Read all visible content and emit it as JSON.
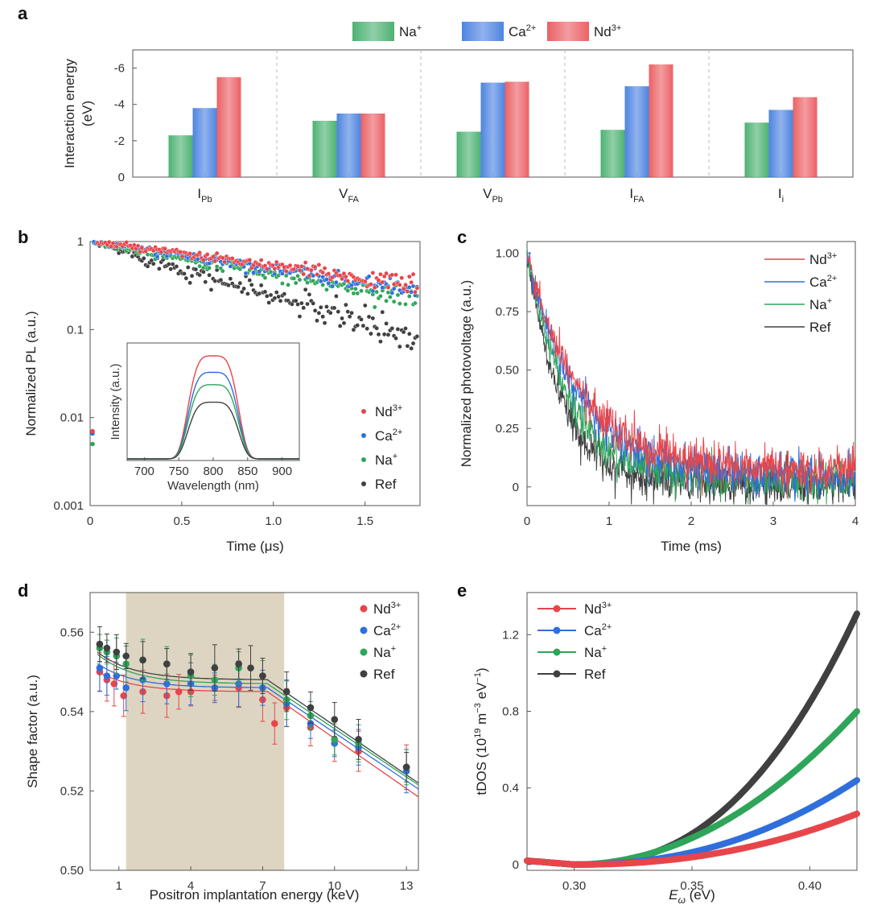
{
  "panel_labels": {
    "a": "a",
    "b": "b",
    "c": "c",
    "d": "d",
    "e": "e"
  },
  "series_colors": {
    "Nd3+": "#e8454a",
    "Ca2+": "#2f6fdc",
    "Na+": "#2ea55a",
    "Ref": "#404040"
  },
  "chart_data": [
    {
      "id": "a",
      "type": "bar",
      "ylabel": "Interaction energy",
      "ylabel2": "(eV)",
      "ylim": [
        0,
        -7
      ],
      "yticks": [
        {
          "v": 0,
          "t": "0"
        },
        {
          "v": -2,
          "t": "-2"
        },
        {
          "v": -4,
          "t": "-4"
        },
        {
          "v": -6,
          "t": "-6"
        }
      ],
      "categories": [
        {
          "main": "I",
          "sub": "Pb"
        },
        {
          "main": "V",
          "sub": "FA"
        },
        {
          "main": "V",
          "sub": "Pb"
        },
        {
          "main": "I",
          "sub": "FA"
        },
        {
          "main": "I",
          "sub": "i"
        }
      ],
      "series": [
        {
          "name": "Na",
          "sup": "+",
          "color": "#2ea55a",
          "values": [
            -2.3,
            -3.1,
            -2.5,
            -2.6,
            -3.0
          ]
        },
        {
          "name": "Ca",
          "sup": "2+",
          "color": "#2f6fdc",
          "values": [
            -3.8,
            -3.5,
            -5.2,
            -5.0,
            -3.7
          ]
        },
        {
          "name": "Nd",
          "sup": "3+",
          "color": "#e8454a",
          "values": [
            -5.5,
            -3.5,
            -5.25,
            -6.2,
            -4.4
          ]
        }
      ],
      "legend_position": "top"
    },
    {
      "id": "b",
      "type": "scatter",
      "yscale": "log",
      "xlabel": "Time (μs)",
      "ylabel": "Normalized PL (a.u.)",
      "xlim": [
        0,
        1.8
      ],
      "ylim": [
        0.001,
        1
      ],
      "xticks": [
        {
          "v": 0,
          "t": "0"
        },
        {
          "v": 0.5,
          "t": "0.5"
        },
        {
          "v": 1.0,
          "t": "1.0"
        },
        {
          "v": 1.5,
          "t": "1.5"
        }
      ],
      "yticks": [
        {
          "v": 0.001,
          "t": "0.001"
        },
        {
          "v": 0.01,
          "t": "0.01"
        },
        {
          "v": 0.1,
          "t": "0.1"
        },
        {
          "v": 1,
          "t": "1"
        }
      ],
      "series": [
        {
          "name": "Nd",
          "sup": "3+",
          "color": "#e8454a",
          "tau": 1.55,
          "noise": 0.05,
          "pre": 0.007
        },
        {
          "name": "Ca",
          "sup": "2+",
          "color": "#2f6fdc",
          "tau": 1.4,
          "noise": 0.05,
          "pre": 0.0066
        },
        {
          "name": "Na",
          "sup": "+",
          "color": "#2ea55a",
          "tau": 1.18,
          "noise": 0.06,
          "pre": 0.005
        },
        {
          "name": "Ref",
          "sup": "",
          "color": "#404040",
          "tau": 0.7,
          "noise": 0.1,
          "pre": 0
        }
      ],
      "legend_position": "bottom-right",
      "inset": {
        "xlabel": "Wavelength (nm)",
        "ylabel": "Intensity (a.u.)",
        "xlim": [
          675,
          925
        ],
        "xticks": [
          {
            "v": 700,
            "t": "700"
          },
          {
            "v": 750,
            "t": "750"
          },
          {
            "v": 800,
            "t": "800"
          },
          {
            "v": 850,
            "t": "850"
          },
          {
            "v": 900,
            "t": "900"
          }
        ],
        "center": 800,
        "width": 42,
        "peaks": [
          {
            "color": "#e8454a",
            "height": 1.0
          },
          {
            "color": "#2f6fdc",
            "height": 0.84
          },
          {
            "color": "#2ea55a",
            "height": 0.72
          },
          {
            "color": "#404040",
            "height": 0.55
          }
        ]
      }
    },
    {
      "id": "c",
      "type": "line",
      "xlabel": "Time (ms)",
      "ylabel": "Normalized photovoltage (a.u.)",
      "xlim": [
        0,
        4
      ],
      "ylim": [
        -0.08,
        1.05
      ],
      "xticks": [
        {
          "v": 0,
          "t": "0"
        },
        {
          "v": 1,
          "t": "1"
        },
        {
          "v": 2,
          "t": "2"
        },
        {
          "v": 3,
          "t": "3"
        },
        {
          "v": 4,
          "t": "4"
        }
      ],
      "yticks": [
        {
          "v": 0,
          "t": "0"
        },
        {
          "v": 0.25,
          "t": "0.25"
        },
        {
          "v": 0.5,
          "t": "0.50"
        },
        {
          "v": 0.75,
          "t": "0.75"
        },
        {
          "v": 1.0,
          "t": "1.00"
        }
      ],
      "series": [
        {
          "name": "Ref",
          "sup": "",
          "color": "#404040",
          "tau": 0.42,
          "base": 0.01
        },
        {
          "name": "Na",
          "sup": "+",
          "color": "#2ea55a",
          "tau": 0.5,
          "base": 0.03
        },
        {
          "name": "Ca",
          "sup": "2+",
          "color": "#2f6fdc",
          "tau": 0.62,
          "base": 0.05
        },
        {
          "name": "Nd",
          "sup": "3+",
          "color": "#e8454a",
          "tau": 0.65,
          "base": 0.07
        }
      ],
      "legend_order": [
        "Nd",
        "Ca",
        "Na",
        "Ref"
      ],
      "legend_position": "top-right"
    },
    {
      "id": "d",
      "type": "scatter",
      "xlabel": "Positron implantation energy (keV)",
      "ylabel": "Shape factor (a.u.)",
      "xlim": [
        -0.2,
        13.5
      ],
      "ylim": [
        0.5,
        0.57
      ],
      "xticks": [
        {
          "v": 1,
          "t": "1"
        },
        {
          "v": 4,
          "t": "4"
        },
        {
          "v": 7,
          "t": "7"
        },
        {
          "v": 10,
          "t": "10"
        },
        {
          "v": 13,
          "t": "13"
        }
      ],
      "yticks": [
        {
          "v": 0.5,
          "t": "0.50"
        },
        {
          "v": 0.52,
          "t": "0.52"
        },
        {
          "v": 0.54,
          "t": "0.54"
        },
        {
          "v": 0.56,
          "t": "0.56"
        }
      ],
      "shaded_region": [
        1.3,
        7.9
      ],
      "series": [
        {
          "name": "Nd",
          "sup": "3+",
          "color": "#e8454a",
          "points": [
            [
              0.2,
              0.55
            ],
            [
              0.5,
              0.548
            ],
            [
              0.8,
              0.547
            ],
            [
              1.2,
              0.544
            ],
            [
              2.0,
              0.545
            ],
            [
              3.0,
              0.544
            ],
            [
              3.5,
              0.545
            ],
            [
              4.0,
              0.545
            ],
            [
              5.0,
              0.546
            ],
            [
              6.0,
              0.546
            ],
            [
              7.0,
              0.543
            ],
            [
              7.5,
              0.537
            ],
            [
              8.0,
              0.541
            ],
            [
              9.0,
              0.536
            ],
            [
              10.0,
              0.533
            ],
            [
              11.0,
              0.53
            ],
            [
              13.0,
              0.526
            ]
          ],
          "fit": [
            0.5505,
            0.545,
            0.5185
          ]
        },
        {
          "name": "Ca",
          "sup": "2+",
          "color": "#2f6fdc",
          "points": [
            [
              0.2,
              0.551
            ],
            [
              0.5,
              0.549
            ],
            [
              0.9,
              0.549
            ],
            [
              1.3,
              0.546
            ],
            [
              2.0,
              0.548
            ],
            [
              3.0,
              0.547
            ],
            [
              4.0,
              0.547
            ],
            [
              5.0,
              0.546
            ],
            [
              6.0,
              0.547
            ],
            [
              7.0,
              0.546
            ],
            [
              8.0,
              0.542
            ],
            [
              9.0,
              0.537
            ],
            [
              10.0,
              0.532
            ],
            [
              11.0,
              0.531
            ],
            [
              13.0,
              0.525
            ]
          ],
          "fit": [
            0.5525,
            0.546,
            0.5205
          ]
        },
        {
          "name": "Na",
          "sup": "+",
          "color": "#2ea55a",
          "points": [
            [
              0.2,
              0.556
            ],
            [
              0.5,
              0.555
            ],
            [
              0.9,
              0.554
            ],
            [
              1.3,
              0.552
            ],
            [
              2.0,
              0.553
            ],
            [
              3.0,
              0.552
            ],
            [
              4.0,
              0.549
            ],
            [
              5.0,
              0.548
            ],
            [
              6.0,
              0.551
            ],
            [
              7.0,
              0.549
            ],
            [
              8.0,
              0.543
            ],
            [
              9.0,
              0.539
            ],
            [
              10.0,
              0.533
            ],
            [
              11.0,
              0.532
            ],
            [
              13.0,
              0.526
            ]
          ],
          "fit": [
            0.555,
            0.547,
            0.5215
          ]
        },
        {
          "name": "Ref",
          "sup": "",
          "color": "#404040",
          "points": [
            [
              0.2,
              0.557
            ],
            [
              0.5,
              0.556
            ],
            [
              0.9,
              0.555
            ],
            [
              1.3,
              0.554
            ],
            [
              2.0,
              0.553
            ],
            [
              3.0,
              0.552
            ],
            [
              4.0,
              0.55
            ],
            [
              5.0,
              0.551
            ],
            [
              6.0,
              0.552
            ],
            [
              6.5,
              0.551
            ],
            [
              7.0,
              0.549
            ],
            [
              8.0,
              0.545
            ],
            [
              9.0,
              0.541
            ],
            [
              10.0,
              0.538
            ],
            [
              11.0,
              0.533
            ],
            [
              13.0,
              0.526
            ]
          ],
          "fit": [
            0.5555,
            0.548,
            0.522
          ]
        }
      ],
      "legend_position": "top-right"
    },
    {
      "id": "e",
      "type": "line",
      "xlabel_main": "E",
      "xlabel_sub": "ω",
      "xlabel_unit": " (eV)",
      "ylabel_pre": "tDOS (10",
      "ylabel_sup1": "19",
      "ylabel_mid": " m",
      "ylabel_sup2": "−3",
      "ylabel_mid2": " eV",
      "ylabel_sup3": "−1",
      "ylabel_post": ")",
      "xlim": [
        0.28,
        0.42
      ],
      "ylim": [
        -0.03,
        1.42
      ],
      "xticks": [
        {
          "v": 0.3,
          "t": "0.30"
        },
        {
          "v": 0.35,
          "t": "0.35"
        },
        {
          "v": 0.4,
          "t": "0.40"
        }
      ],
      "yticks": [
        {
          "v": 0,
          "t": "0"
        },
        {
          "v": 0.4,
          "t": "0.4"
        },
        {
          "v": 0.8,
          "t": "0.8"
        },
        {
          "v": 1.2,
          "t": "1.2"
        }
      ],
      "series": [
        {
          "name": "Nd",
          "sup": "3+",
          "color": "#e8454a",
          "end": 0.265,
          "sharp": 2.2
        },
        {
          "name": "Ca",
          "sup": "2+",
          "color": "#2f6fdc",
          "end": 0.44,
          "sharp": 2.2
        },
        {
          "name": "Na",
          "sup": "+",
          "color": "#2ea55a",
          "end": 0.8,
          "sharp": 2.0
        },
        {
          "name": "Ref",
          "sup": "",
          "color": "#404040",
          "end": 1.31,
          "sharp": 2.4
        }
      ],
      "legend_position": "top-left"
    }
  ]
}
